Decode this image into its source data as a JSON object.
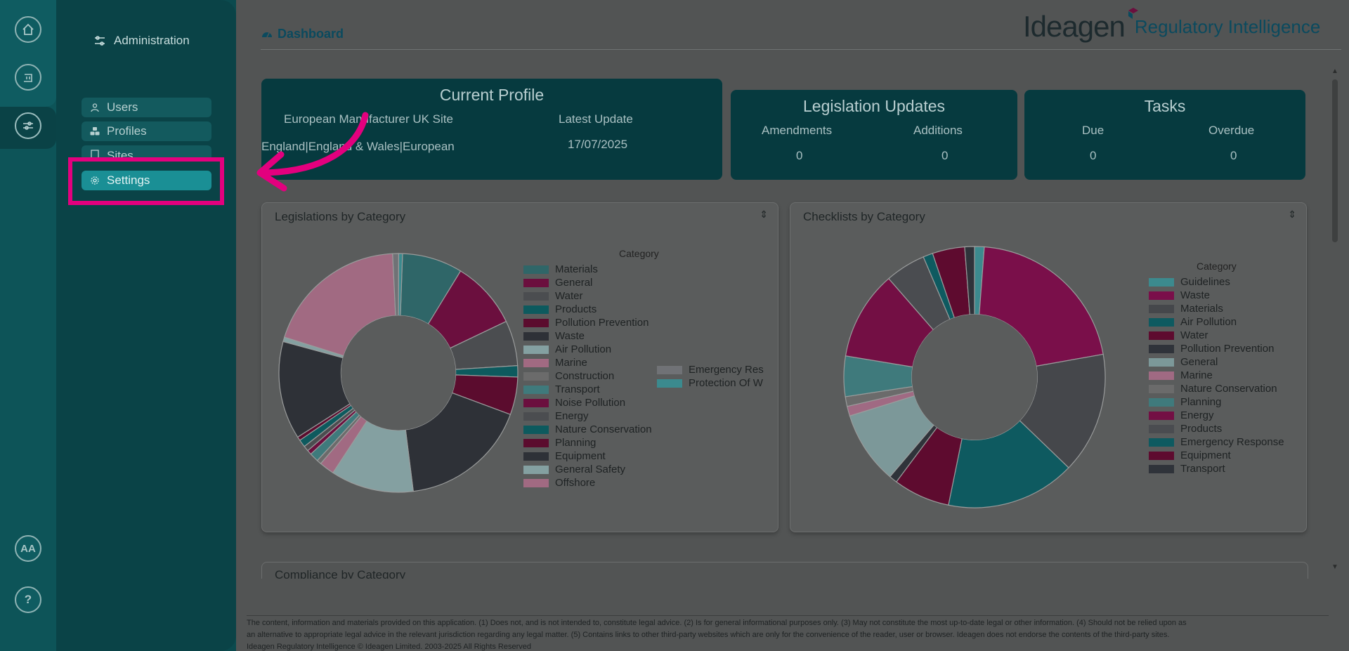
{
  "rail": {
    "items": [
      {
        "name": "home-icon"
      },
      {
        "name": "building-icon"
      },
      {
        "name": "sliders-icon"
      }
    ],
    "bottom": [
      {
        "name": "text-size-icon",
        "label": "AA"
      },
      {
        "name": "help-icon",
        "label": "?"
      }
    ]
  },
  "sidebar": {
    "title": "Administration",
    "items": [
      {
        "label": "Users",
        "icon": "user-icon"
      },
      {
        "label": "Profiles",
        "icon": "cubes-icon"
      },
      {
        "label": "Sites",
        "icon": "building-icon"
      },
      {
        "label": "Settings",
        "icon": "gear-icon"
      }
    ]
  },
  "header": {
    "title": "Dashboard",
    "brand": "Ideagen",
    "product": "Regulatory Intelligence"
  },
  "current_profile": {
    "title": "Current Profile",
    "site": "European Manufacturer UK Site",
    "latest_label": "Latest Update",
    "jurisdiction": "England|England & Wales|European Union_EU",
    "date": "17/07/2025"
  },
  "legislation_updates": {
    "title": "Legislation Updates",
    "amend_label": "Amendments",
    "add_label": "Additions",
    "amend_value": "0",
    "add_value": "0"
  },
  "tasks": {
    "title": "Tasks",
    "due_label": "Due",
    "overdue_label": "Overdue",
    "due_value": "0",
    "overdue_value": "0"
  },
  "chart_data": [
    {
      "type": "pie",
      "title": "Legislations by Category",
      "legend_title": "Category",
      "categories": [
        "Materials",
        "General",
        "Water",
        "Products",
        "Pollution Prevention",
        "Waste",
        "Air Pollution",
        "Marine",
        "Construction",
        "Transport",
        "Noise Pollution",
        "Energy",
        "Nature Conservation",
        "Planning",
        "Equipment",
        "General Safety",
        "Offshore",
        "Emergency Res",
        "Protection Of W"
      ],
      "values": [
        8,
        9,
        6,
        1.5,
        5,
        17,
        11,
        2,
        0.6,
        1.2,
        0.6,
        0.7,
        1,
        0.5,
        13,
        0.6,
        19,
        0.8,
        0.5
      ],
      "colors": [
        "#2f6668",
        "#6b0f3e",
        "#4b4d50",
        "#0d5a5e",
        "#5b0c2e",
        "#2e3137",
        "#84a0a1",
        "#a16a82",
        "#6b6b6b",
        "#3f7a7c",
        "#6b0f3e",
        "#4b4d50",
        "#0d5a5e",
        "#5b0c2e",
        "#2e3137",
        "#84a0a1",
        "#a16a82",
        "#707276",
        "#3b8a8e"
      ]
    },
    {
      "type": "pie",
      "title": "Checklists by Category",
      "legend_title": "Category",
      "categories": [
        "Guidelines",
        "Waste",
        "Materials",
        "Air Pollution",
        "Water",
        "Pollution Prevention",
        "General",
        "Marine",
        "Nature Conservation",
        "Planning",
        "Energy",
        "Products",
        "Emergency Response",
        "Equipment",
        "Transport"
      ],
      "values": [
        1.2,
        21,
        15,
        16,
        7,
        1,
        9,
        1.2,
        1.2,
        5,
        11,
        5,
        1.2,
        4,
        1.2
      ],
      "colors": [
        "#3c8a8e",
        "#7a0f4a",
        "#45474b",
        "#0e5a60",
        "#5e0b2f",
        "#2f333a",
        "#7c9899",
        "#a06a83",
        "#6b6b6b",
        "#3f7a7c",
        "#730f44",
        "#4a4c50",
        "#0e5a60",
        "#5e0b2f",
        "#2f333a"
      ]
    }
  ],
  "compliance": {
    "title": "Compliance by Category"
  },
  "footer": {
    "line1": "The content, information and materials provided on this application. (1) Does not, and is not intended to, constitute legal advice. (2) Is for general informational purposes only. (3) May not constitute the most up-to-date legal or other information. (4) Should not be relied upon as",
    "line2": "an alternative to appropriate legal advice in the relevant jurisdiction regarding any legal matter. (5) Contains links to other third-party websites which are only for the convenience of the reader, user or browser. Ideagen does not endorse the contents of the third-party sites.",
    "line3": "Ideagen Regulatory Intelligence © Ideagen Limited. 2003-2025 All Rights Reserved"
  },
  "colors": {
    "highlight": "#e3007e",
    "accent": "#1a8f95"
  }
}
